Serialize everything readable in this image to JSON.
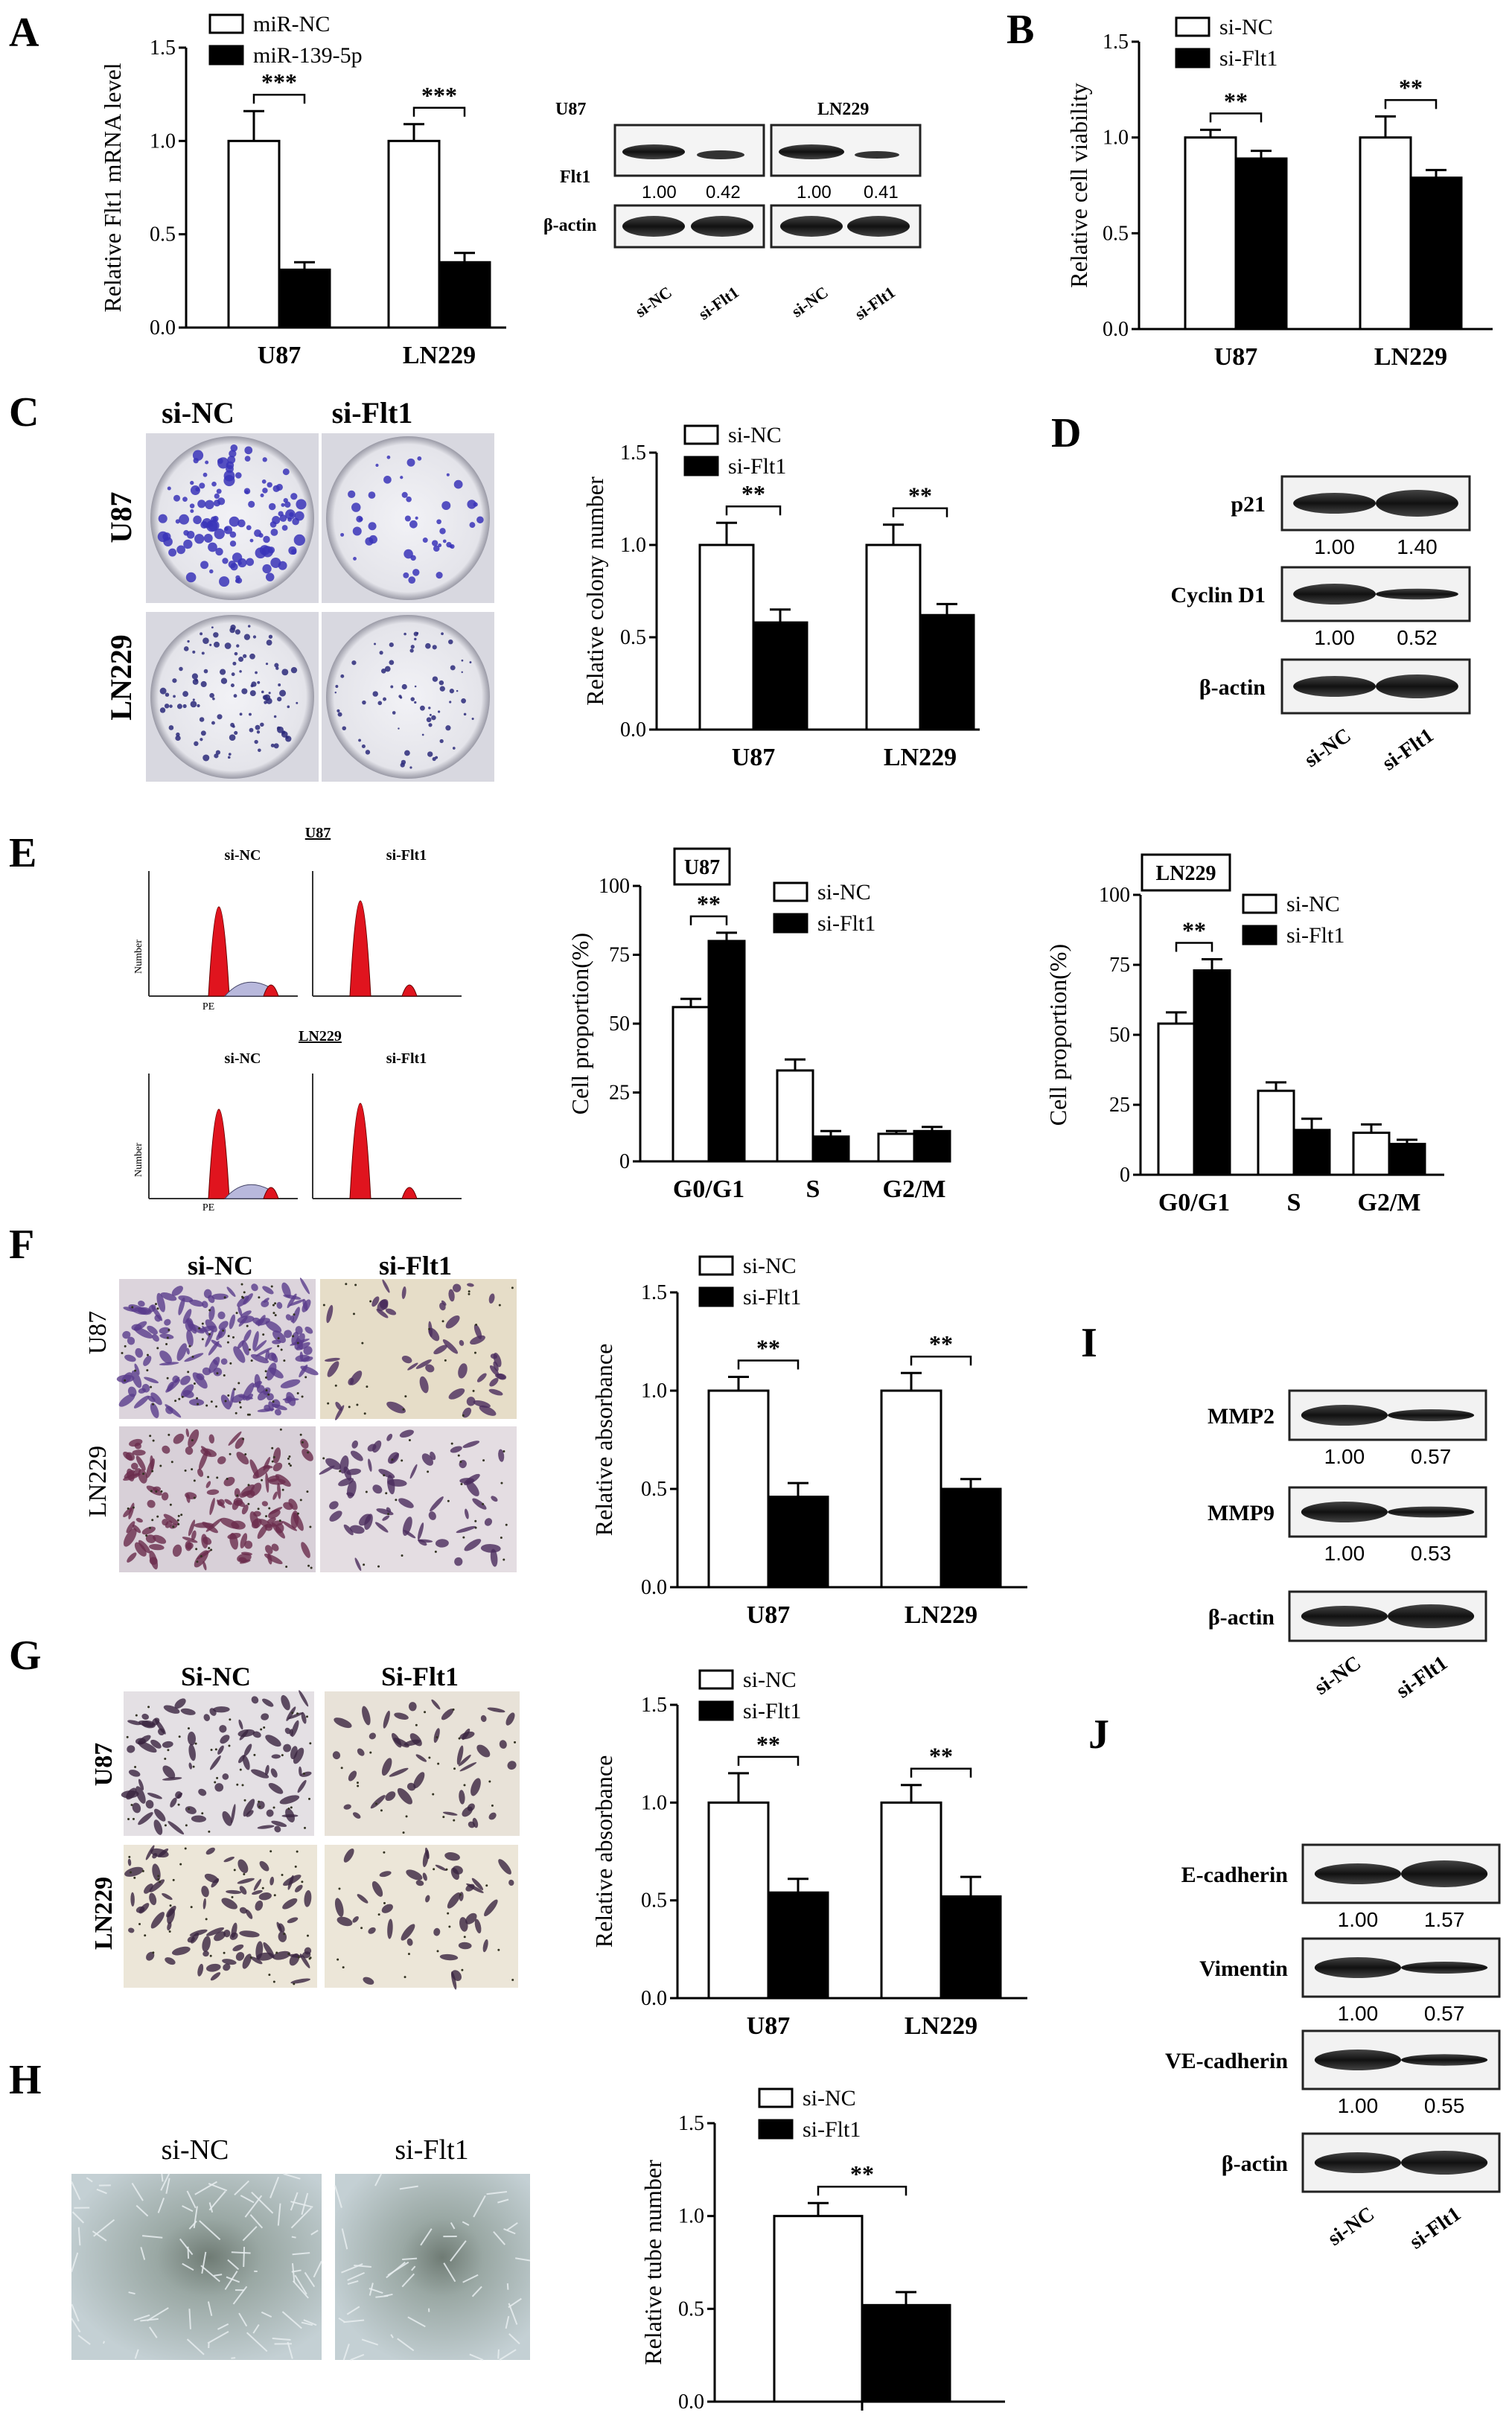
{
  "panel_labels": [
    "A",
    "B",
    "C",
    "D",
    "E",
    "F",
    "G",
    "H",
    "I",
    "J"
  ],
  "legend_mir": [
    "miR-NC",
    "miR-139-5p"
  ],
  "legend_si": [
    "si-NC",
    "si-Flt1"
  ],
  "blot_A": {
    "cells": [
      "U87",
      "LN229"
    ],
    "rows": [
      "Flt1",
      "β-actin"
    ],
    "quant": [
      "1.00",
      "0.42",
      "1.00",
      "0.41"
    ],
    "lanes": [
      "si-NC",
      "si-Flt1",
      "si-NC",
      "si-Flt1"
    ]
  },
  "blot_D": {
    "rows": [
      "p21",
      "Cyclin D1",
      "β-actin"
    ],
    "quant": [
      [
        "1.00",
        "1.40"
      ],
      [
        "1.00",
        "0.52"
      ]
    ],
    "lanes": [
      "si-NC",
      "si-Flt1"
    ]
  },
  "blot_I": {
    "rows": [
      "MMP2",
      "MMP9",
      "β-actin"
    ],
    "quant": [
      [
        "1.00",
        "0.57"
      ],
      [
        "1.00",
        "0.53"
      ]
    ],
    "lanes": [
      "si-NC",
      "si-Flt1"
    ]
  },
  "blot_J": {
    "rows": [
      "E-cadherin",
      "Vimentin",
      "VE-cadherin",
      "β-actin"
    ],
    "quant": [
      [
        "1.00",
        "1.57"
      ],
      [
        "1.00",
        "0.57"
      ],
      [
        "1.00",
        "0.55"
      ]
    ],
    "lanes": [
      "si-NC",
      "si-Flt1"
    ]
  },
  "img_C": {
    "cols": [
      "si-NC",
      "si-Flt1"
    ],
    "rows": [
      "U87",
      "LN229"
    ]
  },
  "img_E": {
    "cols": [
      "si-NC",
      "si-Flt1"
    ],
    "groups": [
      "U87",
      "LN229"
    ],
    "ylabel": "Number",
    "xlabel": "PE"
  },
  "img_F": {
    "cols": [
      "si-NC",
      "si-Flt1"
    ],
    "rows": [
      "U87",
      "LN229"
    ]
  },
  "img_G": {
    "cols": [
      "Si-NC",
      "Si-Flt1"
    ],
    "rows": [
      "U87",
      "LN229"
    ]
  },
  "img_H": {
    "cols": [
      "si-NC",
      "si-Flt1"
    ]
  },
  "chart_data": [
    {
      "id": "A",
      "type": "bar",
      "categories": [
        "U87",
        "LN229"
      ],
      "series": [
        {
          "name": "miR-NC",
          "values": [
            1.0,
            1.0
          ],
          "err": [
            0.16,
            0.09
          ]
        },
        {
          "name": "miR-139-5p",
          "values": [
            0.31,
            0.35
          ],
          "err": [
            0.04,
            0.05
          ]
        }
      ],
      "ylabel": "Relative Flt1 mRNA level",
      "ylim": [
        0,
        1.5
      ],
      "ticks": [
        "0.0",
        "0.5",
        "1.0",
        "1.5"
      ],
      "sig": [
        "***",
        "***"
      ]
    },
    {
      "id": "B",
      "type": "bar",
      "categories": [
        "U87",
        "LN229"
      ],
      "series": [
        {
          "name": "si-NC",
          "values": [
            1.0,
            1.0
          ],
          "err": [
            0.04,
            0.11
          ]
        },
        {
          "name": "si-Flt1",
          "values": [
            0.89,
            0.79
          ],
          "err": [
            0.04,
            0.04
          ]
        }
      ],
      "ylabel": "Relative cell viability",
      "ylim": [
        0,
        1.5
      ],
      "ticks": [
        "0.0",
        "0.5",
        "1.0",
        "1.5"
      ],
      "sig": [
        "**",
        "**"
      ]
    },
    {
      "id": "C",
      "type": "bar",
      "categories": [
        "U87",
        "LN229"
      ],
      "series": [
        {
          "name": "si-NC",
          "values": [
            1.0,
            1.0
          ],
          "err": [
            0.12,
            0.11
          ]
        },
        {
          "name": "si-Flt1",
          "values": [
            0.58,
            0.62
          ],
          "err": [
            0.07,
            0.06
          ]
        }
      ],
      "ylabel": "Relative colony number",
      "ylim": [
        0,
        1.5
      ],
      "ticks": [
        "0.0",
        "0.5",
        "1.0",
        "1.5"
      ],
      "sig": [
        "**",
        "**"
      ]
    },
    {
      "id": "E1",
      "type": "bar",
      "title": "U87",
      "categories": [
        "G0/G1",
        "S",
        "G2/M"
      ],
      "series": [
        {
          "name": "si-NC",
          "values": [
            56,
            33,
            10
          ],
          "err": [
            3,
            4,
            1
          ]
        },
        {
          "name": "si-Flt1",
          "values": [
            80,
            9,
            11
          ],
          "err": [
            3,
            2,
            1.5
          ]
        }
      ],
      "ylabel": "Cell proportion(%)",
      "ylim": [
        0,
        100
      ],
      "ticks": [
        "0",
        "25",
        "50",
        "75",
        "100"
      ],
      "sig": [
        "**",
        "",
        ""
      ]
    },
    {
      "id": "E2",
      "type": "bar",
      "title": "LN229",
      "categories": [
        "G0/G1",
        "S",
        "G2/M"
      ],
      "series": [
        {
          "name": "si-NC",
          "values": [
            54,
            30,
            15
          ],
          "err": [
            4,
            3,
            3
          ]
        },
        {
          "name": "si-Flt1",
          "values": [
            73,
            16,
            11
          ],
          "err": [
            4,
            4,
            1.5
          ]
        }
      ],
      "ylabel": "Cell proportion(%)",
      "ylim": [
        0,
        100
      ],
      "ticks": [
        "0",
        "25",
        "50",
        "75",
        "100"
      ],
      "sig": [
        "**",
        "",
        ""
      ]
    },
    {
      "id": "F",
      "type": "bar",
      "categories": [
        "U87",
        "LN229"
      ],
      "series": [
        {
          "name": "si-NC",
          "values": [
            1.0,
            1.0
          ],
          "err": [
            0.07,
            0.09
          ]
        },
        {
          "name": "si-Flt1",
          "values": [
            0.46,
            0.5
          ],
          "err": [
            0.07,
            0.05
          ]
        }
      ],
      "ylabel": "Relative absorbance",
      "ylim": [
        0,
        1.5
      ],
      "ticks": [
        "0.0",
        "0.5",
        "1.0",
        "1.5"
      ],
      "sig": [
        "**",
        "**"
      ]
    },
    {
      "id": "G",
      "type": "bar",
      "categories": [
        "U87",
        "LN229"
      ],
      "series": [
        {
          "name": "si-NC",
          "values": [
            1.0,
            1.0
          ],
          "err": [
            0.15,
            0.09
          ]
        },
        {
          "name": "si-Flt1",
          "values": [
            0.54,
            0.52
          ],
          "err": [
            0.07,
            0.1
          ]
        }
      ],
      "ylabel": "Relative absorbance",
      "ylim": [
        0,
        1.5
      ],
      "ticks": [
        "0.0",
        "0.5",
        "1.0",
        "1.5"
      ],
      "sig": [
        "**",
        "**"
      ]
    },
    {
      "id": "H",
      "type": "bar",
      "categories": [
        ""
      ],
      "series": [
        {
          "name": "si-NC",
          "values": [
            1.0
          ],
          "err": [
            0.07
          ]
        },
        {
          "name": "si-Flt1",
          "values": [
            0.52
          ],
          "err": [
            0.07
          ]
        }
      ],
      "ylabel": "Relative tube number",
      "ylim": [
        0,
        1.5
      ],
      "ticks": [
        "0.0",
        "0.5",
        "1.0",
        "1.5"
      ],
      "sig": [
        "**"
      ]
    }
  ]
}
